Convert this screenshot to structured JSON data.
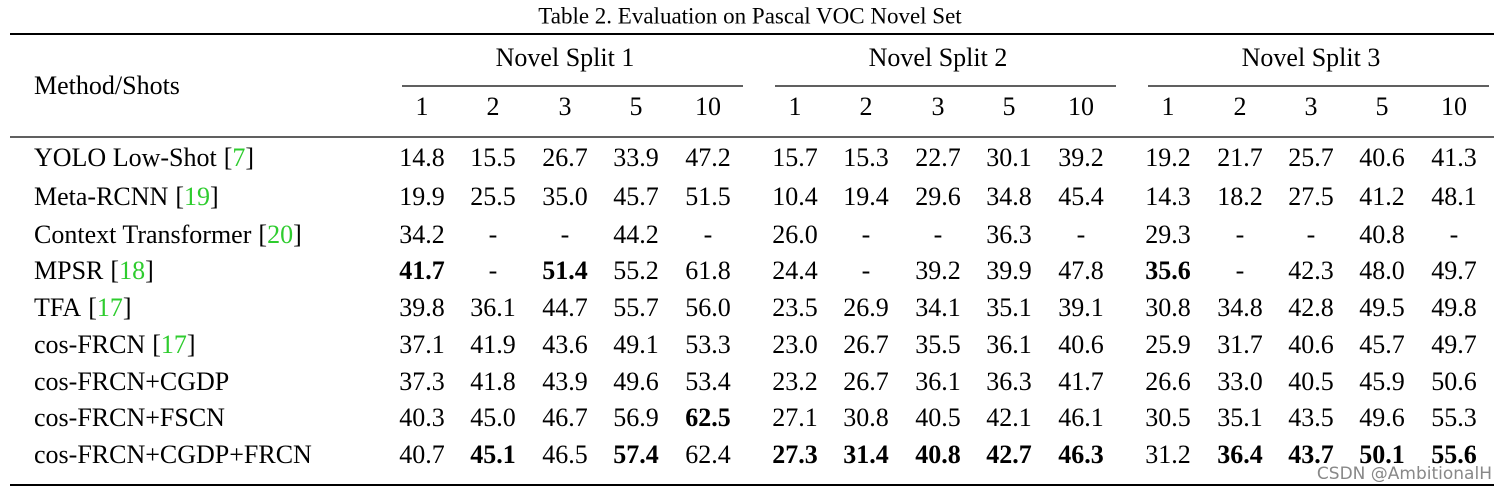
{
  "title": "Table 2. Evaluation on Pascal VOC Novel Set",
  "header": {
    "method": "Method/Shots",
    "splits": [
      "Novel Split 1",
      "Novel Split 2",
      "Novel Split 3"
    ],
    "shots": [
      "1",
      "2",
      "3",
      "5",
      "10"
    ]
  },
  "rows": [
    {
      "method": "YOLO Low-Shot",
      "ref": [
        "[",
        "7",
        "]"
      ],
      "cells": [
        "14.8",
        "15.5",
        "26.7",
        "33.9",
        "47.2",
        "15.7",
        "15.3",
        "22.7",
        "30.1",
        "39.2",
        "19.2",
        "21.7",
        "25.7",
        "40.6",
        "41.3"
      ],
      "bold": []
    },
    {
      "method": "Meta-RCNN",
      "ref": [
        "[",
        "19",
        "]"
      ],
      "cells": [
        "19.9",
        "25.5",
        "35.0",
        "45.7",
        "51.5",
        "10.4",
        "19.4",
        "29.6",
        "34.8",
        "45.4",
        "14.3",
        "18.2",
        "27.5",
        "41.2",
        "48.1"
      ],
      "bold": []
    },
    {
      "method": "Context Transformer",
      "ref": [
        "[",
        "20",
        "]"
      ],
      "cells": [
        "34.2",
        "-",
        "-",
        "44.2",
        "-",
        "26.0",
        "-",
        "-",
        "36.3",
        "-",
        "29.3",
        "-",
        "-",
        "40.8",
        "-"
      ],
      "bold": []
    },
    {
      "method": "MPSR",
      "ref": [
        "[",
        "18",
        "]"
      ],
      "cells": [
        "41.7",
        "-",
        "51.4",
        "55.2",
        "61.8",
        "24.4",
        "-",
        "39.2",
        "39.9",
        "47.8",
        "35.6",
        "-",
        "42.3",
        "48.0",
        "49.7"
      ],
      "bold": [
        0,
        2,
        10
      ]
    },
    {
      "method": "TFA",
      "ref": [
        "[",
        "17",
        "]"
      ],
      "cells": [
        "39.8",
        "36.1",
        "44.7",
        "55.7",
        "56.0",
        "23.5",
        "26.9",
        "34.1",
        "35.1",
        "39.1",
        "30.8",
        "34.8",
        "42.8",
        "49.5",
        "49.8"
      ],
      "bold": []
    },
    {
      "method": "cos-FRCN",
      "ref": [
        "[",
        "17",
        "]"
      ],
      "cells": [
        "37.1",
        "41.9",
        "43.6",
        "49.1",
        "53.3",
        "23.0",
        "26.7",
        "35.5",
        "36.1",
        "40.6",
        "25.9",
        "31.7",
        "40.6",
        "45.7",
        "49.7"
      ],
      "bold": []
    },
    {
      "method": "cos-FRCN+CGDP",
      "cells": [
        "37.3",
        "41.8",
        "43.9",
        "49.6",
        "53.4",
        "23.2",
        "26.7",
        "36.1",
        "36.3",
        "41.7",
        "26.6",
        "33.0",
        "40.5",
        "45.9",
        "50.6"
      ],
      "bold": []
    },
    {
      "method": "cos-FRCN+FSCN",
      "cells": [
        "40.3",
        "45.0",
        "46.7",
        "56.9",
        "62.5",
        "27.1",
        "30.8",
        "40.5",
        "42.1",
        "46.1",
        "30.5",
        "35.1",
        "43.5",
        "49.6",
        "55.3"
      ],
      "bold": [
        4
      ]
    },
    {
      "method": "cos-FRCN+CGDP+FRCN",
      "cells": [
        "40.7",
        "45.1",
        "46.5",
        "57.4",
        "62.4",
        "27.3",
        "31.4",
        "40.8",
        "42.7",
        "46.3",
        "31.2",
        "36.4",
        "43.7",
        "50.1",
        "55.6"
      ],
      "bold": [
        1,
        3,
        5,
        6,
        7,
        8,
        9,
        11,
        12,
        13,
        14
      ]
    }
  ],
  "watermark": "CSDN @AmbitionalH"
}
